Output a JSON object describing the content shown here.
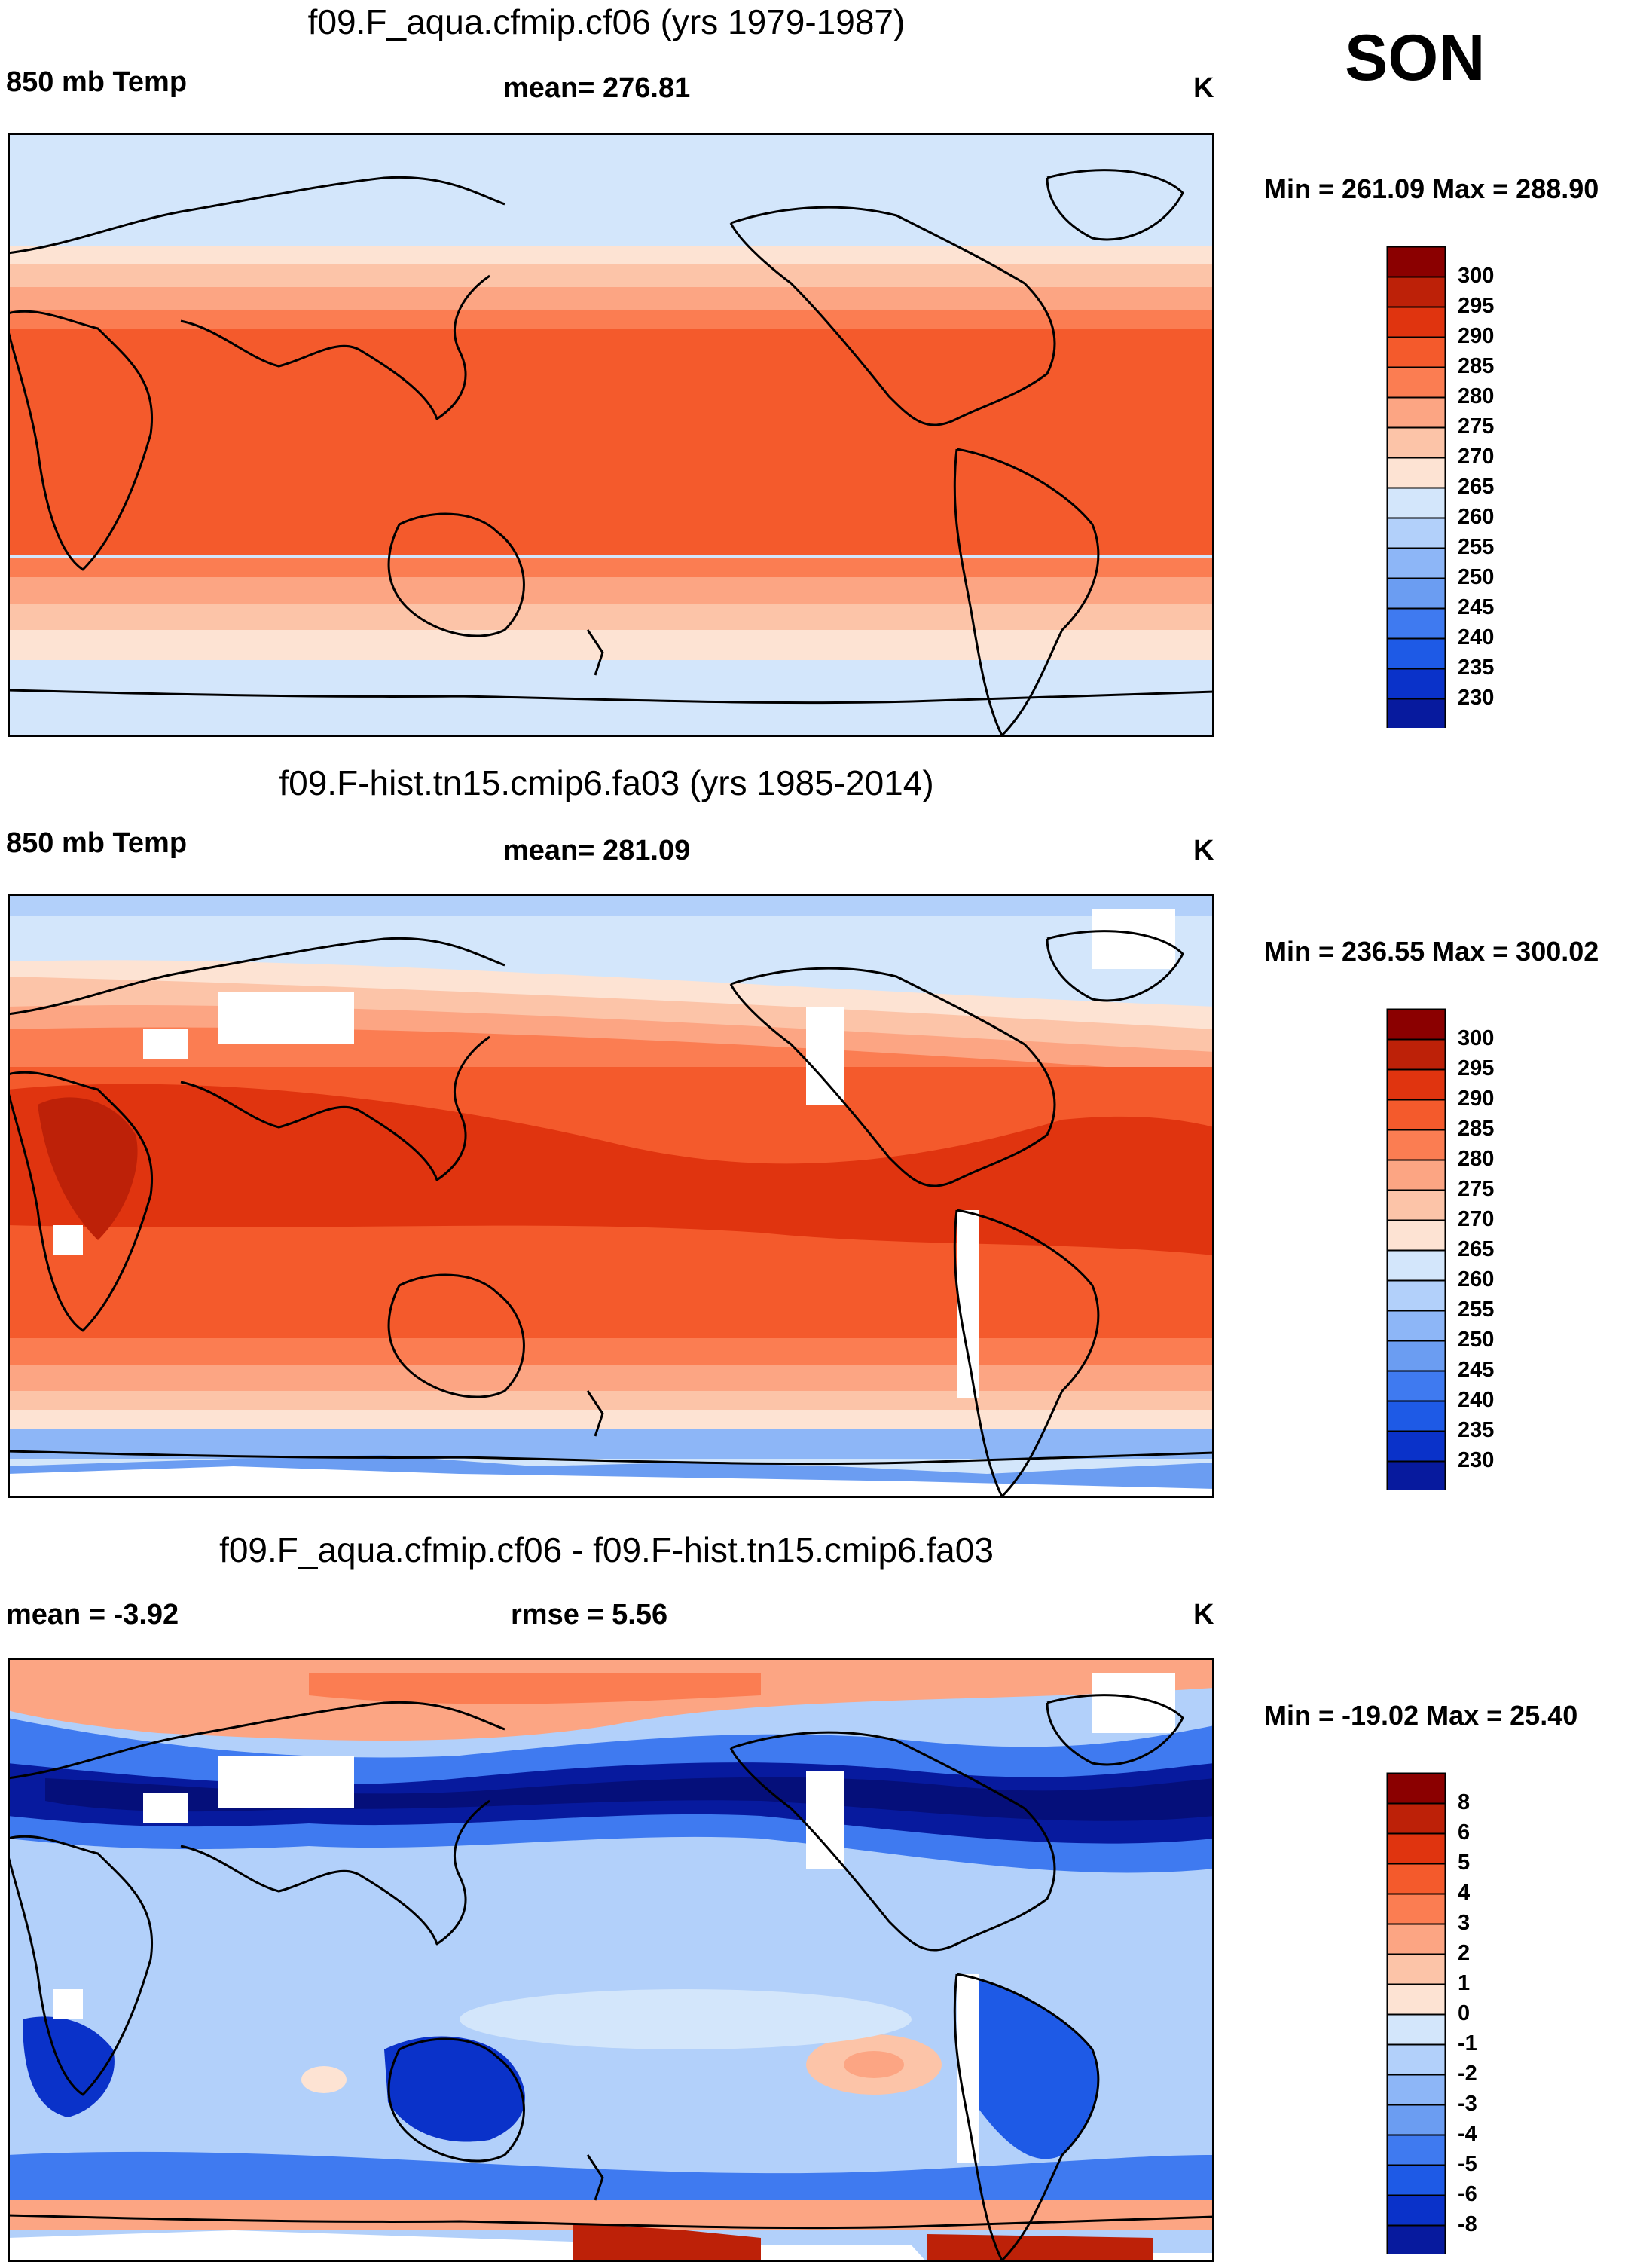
{
  "season": "SON",
  "colors": {
    "warm": [
      "#fde3d3",
      "#fcc4a8",
      "#fca583",
      "#fb7d52",
      "#f45a2c",
      "#e0340f",
      "#bd2108",
      "#8b0000"
    ],
    "cool": [
      "#d3e6fb",
      "#b2d0fa",
      "#8db6f7",
      "#6b9df2",
      "#3f7af0",
      "#1e5ae6",
      "#0a32c9",
      "#071a9e",
      "#050f7a"
    ],
    "land": "#000000"
  },
  "chart_data": [
    {
      "type": "heatmap",
      "panel": "top",
      "title": "f09.F_aqua.cfmip.cf06 (yrs 1979-1987)",
      "left_label": "850 mb Temp",
      "center_label": "mean= 276.81",
      "units": "K",
      "min_max": "Min = 261.09 Max = 288.90",
      "colorbar_ticks": [
        "300",
        "295",
        "290",
        "285",
        "280",
        "275",
        "270",
        "265",
        "260",
        "255",
        "250",
        "245",
        "240",
        "235",
        "230"
      ],
      "levels": [
        230,
        235,
        240,
        245,
        250,
        255,
        260,
        265,
        270,
        275,
        280,
        285,
        290,
        295,
        300
      ],
      "latitude_range": [
        -90,
        90
      ],
      "longitude_range": [
        0,
        360
      ]
    },
    {
      "type": "heatmap",
      "panel": "middle",
      "title": "f09.F-hist.tn15.cmip6.fa03 (yrs 1985-2014)",
      "left_label": "850 mb Temp",
      "center_label": "mean= 281.09",
      "units": "K",
      "min_max": "Min = 236.55 Max = 300.02",
      "colorbar_ticks": [
        "300",
        "295",
        "290",
        "285",
        "280",
        "275",
        "270",
        "265",
        "260",
        "255",
        "250",
        "245",
        "240",
        "235",
        "230"
      ],
      "levels": [
        230,
        235,
        240,
        245,
        250,
        255,
        260,
        265,
        270,
        275,
        280,
        285,
        290,
        295,
        300
      ],
      "latitude_range": [
        -90,
        90
      ],
      "longitude_range": [
        0,
        360
      ]
    },
    {
      "type": "heatmap",
      "panel": "bottom",
      "title": "f09.F_aqua.cfmip.cf06 - f09.F-hist.tn15.cmip6.fa03",
      "left_label": "mean =  -3.92",
      "center_label": "rmse =   5.56",
      "units": "K",
      "min_max": "Min = -19.02 Max =  25.40",
      "colorbar_ticks": [
        "8",
        "6",
        "5",
        "4",
        "3",
        "2",
        "1",
        "0",
        "-1",
        "-2",
        "-3",
        "-4",
        "-5",
        "-6",
        "-8"
      ],
      "levels": [
        -8,
        -6,
        -5,
        -4,
        -3,
        -2,
        -1,
        0,
        1,
        2,
        3,
        4,
        5,
        6,
        8
      ],
      "latitude_range": [
        -90,
        90
      ],
      "longitude_range": [
        0,
        360
      ]
    }
  ]
}
